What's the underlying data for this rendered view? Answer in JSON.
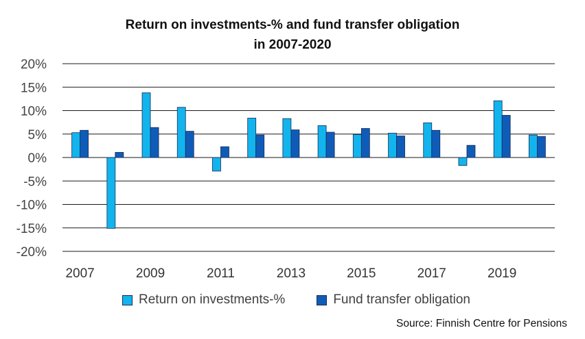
{
  "chart_data": {
    "type": "bar",
    "title_line1": "Return on investments-% and fund transfer obligation",
    "title_line2": "in 2007-2020",
    "categories": [
      "2007",
      "2008",
      "2009",
      "2010",
      "2011",
      "2012",
      "2013",
      "2014",
      "2015",
      "2016",
      "2017",
      "2018",
      "2019",
      "2020"
    ],
    "x_tick_labels": [
      "2007",
      "",
      "2009",
      "",
      "2011",
      "",
      "2013",
      "",
      "2015",
      "",
      "2017",
      "",
      "2019",
      ""
    ],
    "series": [
      {
        "name": "Return on investments-%",
        "color": "#12b4ee",
        "values": [
          5.3,
          -15.1,
          13.8,
          10.7,
          -2.9,
          8.4,
          8.3,
          6.8,
          4.9,
          5.2,
          7.4,
          -1.7,
          12.1,
          4.8
        ]
      },
      {
        "name": "Fund transfer obligation",
        "color": "#0f5cb8",
        "values": [
          5.8,
          1.1,
          6.4,
          5.6,
          2.3,
          4.8,
          5.9,
          5.4,
          6.2,
          4.6,
          5.8,
          2.6,
          9.0,
          4.5
        ]
      }
    ],
    "y_ticks": [
      20,
      15,
      10,
      5,
      0,
      -5,
      -10,
      -15,
      -20
    ],
    "y_tick_labels": [
      "20%",
      "15%",
      "10%",
      "5%",
      "0%",
      "-5%",
      "-10%",
      "-15%",
      "-20%"
    ],
    "ylim": [
      -20,
      20
    ],
    "grid": true,
    "legend_position": "bottom",
    "source": "Source: Finnish Centre for Pensions"
  }
}
